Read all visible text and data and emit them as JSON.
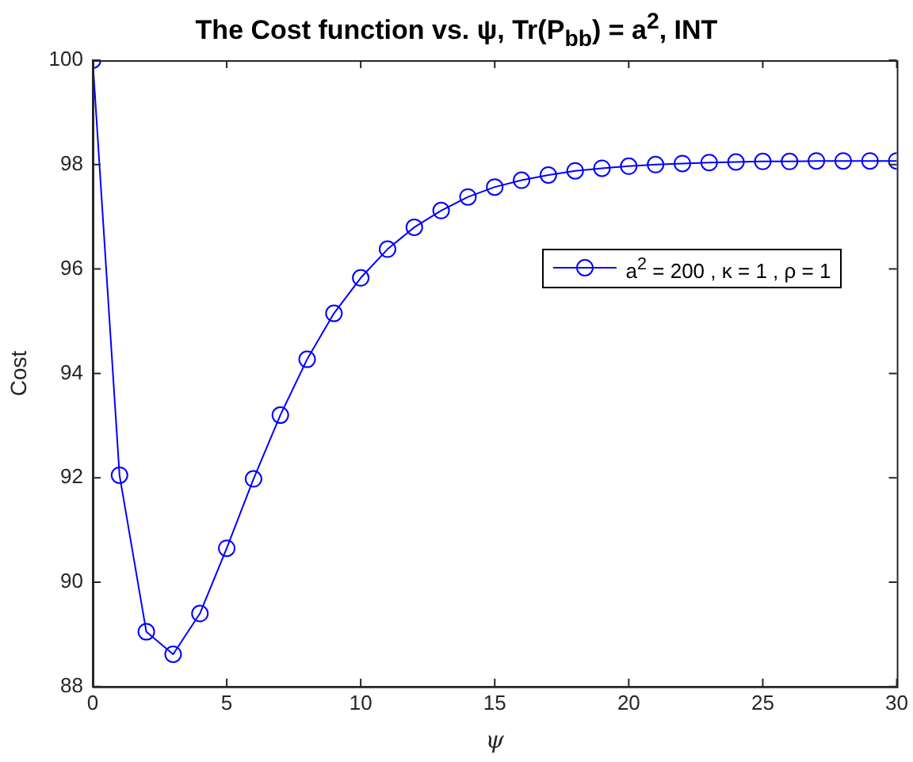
{
  "chart_data": {
    "type": "line",
    "title": "The Cost function vs. ψ, Tr(P$_{bb}$) = a$^{2}$, INT",
    "xlabel": "ψ",
    "ylabel": "Cost",
    "x": [
      0,
      1,
      2,
      3,
      4,
      5,
      6,
      7,
      8,
      9,
      10,
      11,
      12,
      13,
      14,
      15,
      16,
      17,
      18,
      19,
      20,
      21,
      22,
      23,
      24,
      25,
      26,
      27,
      28,
      29,
      30
    ],
    "series": [
      {
        "name": "a$^{2}$ = 200 , κ = 1 , ρ = 1",
        "color": "#0000ff",
        "values": [
          100,
          92.05,
          89.05,
          88.62,
          89.4,
          90.65,
          91.98,
          93.2,
          94.27,
          95.15,
          95.83,
          96.38,
          96.8,
          97.12,
          97.38,
          97.57,
          97.7,
          97.8,
          97.88,
          97.93,
          97.97,
          98.0,
          98.02,
          98.04,
          98.05,
          98.06,
          98.06,
          98.07,
          98.07,
          98.07,
          98.07
        ]
      }
    ],
    "xlim": [
      0,
      30
    ],
    "xticks": [
      0,
      5,
      10,
      15,
      20,
      25,
      30
    ],
    "ylim": [
      88,
      100
    ],
    "yticks": [
      88,
      90,
      92,
      94,
      96,
      98,
      100
    ],
    "grid": false,
    "legend": "right",
    "marker": "circle",
    "line_style": "solid"
  }
}
